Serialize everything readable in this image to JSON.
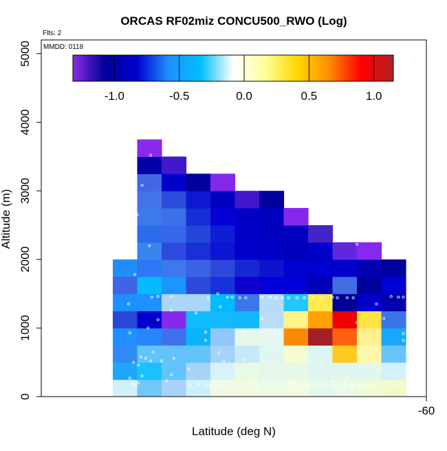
{
  "chart_data": {
    "type": "heatmap",
    "title": "ORCAS RF02miz CONCU500_RWO (Log)",
    "xlabel": "Latitude (deg N)",
    "ylabel": "Altitude (m)",
    "notes": {
      "flights": "Flts: 2",
      "mmdd": "MMDD: 0118"
    },
    "x_ticks": [
      {
        "value": -60,
        "label": "-60"
      }
    ],
    "y_ticks": [
      {
        "value": 0,
        "label": "0"
      },
      {
        "value": 1000,
        "label": "1000"
      },
      {
        "value": 2000,
        "label": "2000"
      },
      {
        "value": 3000,
        "label": "3000"
      },
      {
        "value": 4000,
        "label": "4000"
      },
      {
        "value": 5000,
        "label": "5000"
      }
    ],
    "ylim": [
      0,
      5200
    ],
    "colorbar": {
      "range": [
        -1.32,
        1.15
      ],
      "stops": [
        "#8a2be2",
        "#00009b",
        "#0000cd",
        "#1e90ff",
        "#00bfff",
        "#ffffff",
        "#ffff99",
        "#ffd700",
        "#ff8c00",
        "#ff0000",
        "#b22222"
      ],
      "ticks": [
        {
          "value": -1.0,
          "label": "-1.0"
        },
        {
          "value": -0.5,
          "label": "-0.5"
        },
        {
          "value": 0.0,
          "label": "0.0"
        },
        {
          "value": 0.5,
          "label": "0.5"
        },
        {
          "value": 1.0,
          "label": "1.0"
        }
      ]
    },
    "columns": 12,
    "cell_height_m": 250,
    "grid": [
      [
        0,
        [
          "#d1f0fb",
          "#6fc8f8",
          "#a8d2f9",
          "#cdf1fb",
          "#eff9e4",
          "#f1fbe0",
          "#eafce6",
          "#f2fce1",
          "#e4f8eb",
          "#e9fbe7",
          "#eefcd4",
          "#f3fac9"
        ]
      ],
      [
        1,
        [
          "#1fa6fb",
          "#19c2fd",
          "#62c4fc",
          "#a9d2f8",
          "#d7f3f9",
          "#e8f9e4",
          "#e3f8e9",
          "#e6f9e5",
          "#dff5f0",
          "#e0f7ef",
          "#e1f6ee",
          "#d4f1fb"
        ]
      ],
      [
        2,
        [
          "#2f8af6",
          "#62c4fc",
          "#63c3f9",
          "#63c3f9",
          "#a6d1f8",
          "#c6e9fa",
          "#e0f6ef",
          "#f4fcd0",
          "#dff5f1",
          "#ffc91f",
          "#fff7a9",
          "#6bc4f8"
        ]
      ],
      [
        3,
        [
          "#1e90ff",
          "#2786fc",
          "#3e71eb",
          "#0bb4fa",
          "#8fc8f8",
          "#e4f8eb",
          "#e4f7f0",
          "#fa8a06",
          "#a41e25",
          "#ff6010",
          "#fff08f",
          "#18a8fb"
        ]
      ],
      [
        4,
        [
          "#2b47d8",
          "#0000cf",
          "#8629ea",
          "#12bbfb",
          "#14b9fb",
          "#11b9fa",
          "#b9dcf9",
          "#fff58c",
          "#fda001",
          "#ec0001",
          "#ffe342",
          "#3c75ea"
        ]
      ],
      [
        5,
        [
          "#1e90ff",
          "#1e90ff",
          "#acd5f9",
          "#a9d6f9",
          "#00bbfe",
          "#3b76ea",
          "#b6dcf9",
          "#23c7fe",
          "#ffeb51",
          "#000198",
          "#0000cd",
          "#0000ad"
        ]
      ],
      [
        6,
        [
          "#4163e6",
          "#06bbfd",
          "#1a96fe",
          "#2b4adb",
          "#1532da",
          "#0f00cf",
          "#0000da",
          "#0000d7",
          "#0000b7",
          "#416de4",
          "#00009a",
          "#0000d2"
        ]
      ],
      [
        7,
        [
          "#1f8ef8",
          "#2f77f4",
          "#3d78ec",
          "#3b63e5",
          "#2d48db",
          "#1728d2",
          "#0d14cd",
          "#0000cf",
          "#0000d0",
          "#0000cb",
          "#0000b0",
          "#0000a0"
        ]
      ],
      [
        8,
        [
          null,
          "#3785f1",
          "#2e4adc",
          "#1a2fd5",
          "#0b15d3",
          "#0000cd",
          "#0000c8",
          "#0000bc",
          "#0000cc",
          "#6127df",
          "#8628f0",
          null
        ]
      ],
      [
        9,
        [
          null,
          "#2b6cec",
          "#3669e9",
          "#2346d8",
          "#0e1fd3",
          "#0000c8",
          "#0000c1",
          "#0000be",
          "#4524c7",
          null,
          null,
          null
        ]
      ],
      [
        10,
        [
          null,
          "#3b7be9",
          "#3c71e7",
          "#162ed5",
          "#0400d5",
          "#0000c6",
          "#0000bf",
          "#8428ed",
          null,
          null,
          null,
          null
        ]
      ],
      [
        11,
        [
          null,
          "#4773e8",
          "#2a4cda",
          "#0e18d2",
          "#0000c0",
          "#4218cd",
          "#00009f",
          null,
          null,
          null,
          null,
          null
        ]
      ],
      [
        12,
        [
          null,
          "#4167e5",
          "#0000c8",
          "#00009d",
          "#8428ec",
          null,
          null,
          null,
          null,
          null,
          null,
          null
        ]
      ],
      [
        13,
        [
          null,
          "#0000a8",
          "#4218cd",
          null,
          null,
          null,
          null,
          null,
          null,
          null,
          null,
          null
        ]
      ],
      [
        14,
        [
          null,
          "#8c29ea",
          null,
          null,
          null,
          null,
          null,
          null,
          null,
          null,
          null,
          null
        ]
      ]
    ],
    "points": [
      [
        0.7,
        270
      ],
      [
        0.82,
        180
      ],
      [
        0.93,
        160
      ],
      [
        1.05,
        200
      ],
      [
        1.2,
        300
      ],
      [
        1.05,
        460
      ],
      [
        0.85,
        500
      ],
      [
        1.35,
        560
      ],
      [
        1.65,
        650
      ],
      [
        0.7,
        930
      ],
      [
        1.45,
        1000
      ],
      [
        1.85,
        1120
      ],
      [
        2.4,
        1260
      ],
      [
        4.4,
        1310
      ],
      [
        4.7,
        1450
      ],
      [
        4.3,
        1500
      ],
      [
        3.9,
        1440
      ],
      [
        4.9,
        1450
      ],
      [
        5.2,
        1440
      ],
      [
        5.45,
        1440
      ],
      [
        0.65,
        1350
      ],
      [
        2.4,
        1460
      ],
      [
        1.85,
        1460
      ],
      [
        1.6,
        1450
      ],
      [
        3.4,
        1220
      ],
      [
        3.8,
        940
      ],
      [
        5.35,
        960
      ],
      [
        6.1,
        1140
      ],
      [
        6.1,
        1450
      ],
      [
        6.45,
        1450
      ],
      [
        6.7,
        1440
      ],
      [
        6.95,
        1440
      ],
      [
        7.2,
        1440
      ],
      [
        7.55,
        1440
      ],
      [
        7.85,
        1440
      ],
      [
        8.2,
        1440
      ],
      [
        8.55,
        1440
      ],
      [
        9.0,
        1450
      ],
      [
        9.2,
        1440
      ],
      [
        9.6,
        1440
      ],
      [
        9.85,
        1440
      ],
      [
        11.4,
        1460
      ],
      [
        11.7,
        1450
      ],
      [
        11.9,
        1450
      ],
      [
        10.8,
        1350
      ],
      [
        11.1,
        1140
      ],
      [
        10.0,
        1080
      ],
      [
        11.9,
        920
      ],
      [
        11.9,
        820
      ],
      [
        10.45,
        700
      ],
      [
        10.9,
        390
      ],
      [
        9.6,
        270
      ],
      [
        9.0,
        230
      ],
      [
        8.5,
        450
      ],
      [
        7.35,
        530
      ],
      [
        5.9,
        470
      ],
      [
        5.35,
        540
      ],
      [
        4.55,
        520
      ],
      [
        4.35,
        640
      ],
      [
        3.8,
        820
      ],
      [
        3.1,
        400
      ],
      [
        2.4,
        320
      ],
      [
        2.2,
        230
      ],
      [
        3.15,
        170
      ],
      [
        3.5,
        180
      ],
      [
        3.85,
        170
      ],
      [
        4.0,
        160
      ],
      [
        4.25,
        160
      ],
      [
        4.45,
        160
      ],
      [
        5.25,
        170
      ],
      [
        5.6,
        170
      ],
      [
        5.9,
        180
      ],
      [
        6.2,
        210
      ],
      [
        6.6,
        190
      ],
      [
        6.9,
        170
      ],
      [
        7.2,
        190
      ],
      [
        8.0,
        160
      ],
      [
        8.35,
        170
      ],
      [
        8.7,
        170
      ],
      [
        9.05,
        160
      ],
      [
        9.25,
        140
      ],
      [
        9.5,
        190
      ],
      [
        9.8,
        160
      ],
      [
        10.1,
        150
      ],
      [
        10.4,
        170
      ],
      [
        10.7,
        160
      ],
      [
        11.1,
        180
      ],
      [
        11.5,
        160
      ],
      [
        11.8,
        150
      ],
      [
        1.15,
        580
      ],
      [
        1.55,
        520
      ],
      [
        2.0,
        520
      ],
      [
        2.5,
        560
      ],
      [
        0.8,
        2200
      ],
      [
        1.0,
        2650
      ],
      [
        1.2,
        3080
      ],
      [
        1.55,
        3520
      ],
      [
        1.5,
        2200
      ],
      [
        0.9,
        1780
      ],
      [
        10.0,
        2220
      ]
    ]
  }
}
